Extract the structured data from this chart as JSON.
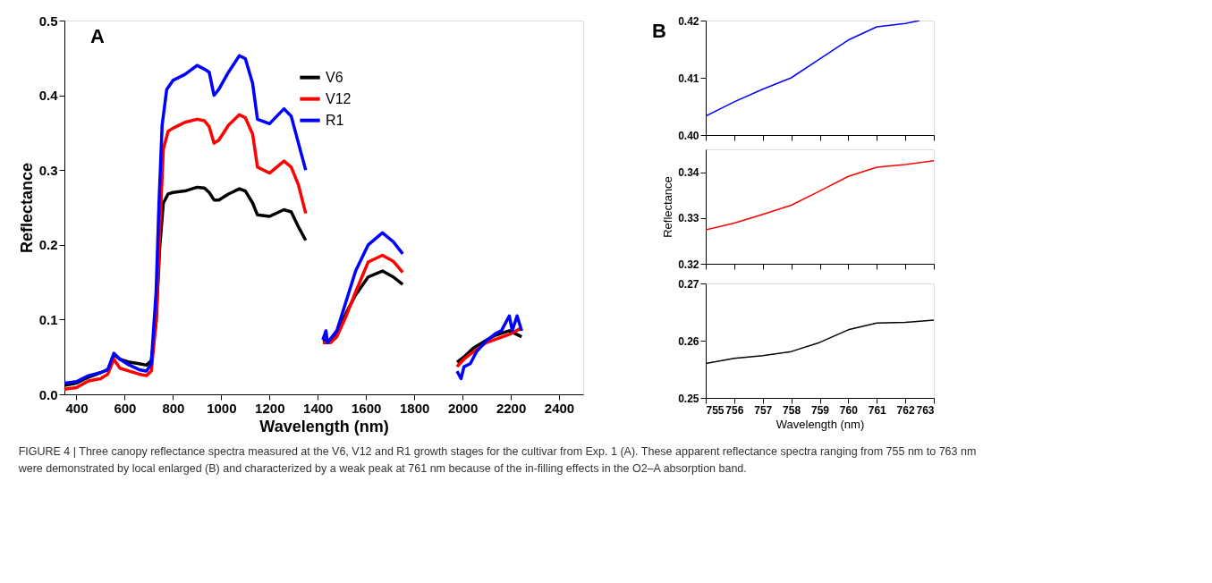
{
  "chart_data": [
    {
      "type": "line",
      "xlabel": "Wavelength (nm)",
      "ylabel": "Reflectance",
      "xlim": [
        350,
        2500
      ],
      "xticks": [
        400,
        600,
        800,
        1000,
        1200,
        1400,
        1600,
        1800,
        2000,
        2200,
        2400
      ],
      "ylim": [
        0,
        0.5
      ],
      "yticks": [
        {
          "value": 0,
          "label": "0.0"
        },
        0.1,
        0.2,
        0.3,
        0.4,
        0.5
      ],
      "grid": false,
      "legend": "top",
      "line_style": "solid",
      "marker": "none",
      "annotations": [
        "A",
        "FIGURE 4 | Three canopy reflectance spectra measured at the V6, V12 and R1 growth stages for the cultivar from Exp. 1 (A). These apparent reflectance spectra ranging from 755 nm to 763 nm were demonstrated by local enlarged (B) and characterized by a weak peak at 761 nm because of the in-filling effects in the O2–A absorption band."
      ],
      "series": [
        {
          "name": "V6",
          "color": "#000000",
          "x": [
            350,
            400,
            450,
            500,
            530,
            555,
            580,
            620,
            660,
            690,
            710,
            730,
            745,
            760,
            780,
            800,
            850,
            900,
            930,
            950,
            970,
            990,
            1030,
            1075,
            1100,
            1130,
            1150,
            1200,
            1260,
            1290,
            1320,
            1350,
            1390,
            1421,
            1453,
            1479,
            1518,
            1557,
            1609,
            1668,
            1713,
            1752,
            1870,
            1977,
            2006,
            2045,
            2097,
            2135,
            2194,
            2245
          ],
          "values": [
            0.012,
            0.015,
            0.023,
            0.029,
            0.033,
            0.053,
            0.047,
            0.043,
            0.041,
            0.039,
            0.045,
            0.097,
            0.196,
            0.256,
            0.268,
            0.27,
            0.272,
            0.277,
            0.276,
            0.27,
            0.26,
            0.26,
            0.268,
            0.275,
            0.272,
            0.256,
            0.24,
            0.238,
            0.247,
            0.244,
            0.224,
            0.206,
            null,
            0.073,
            0.071,
            0.081,
            0.109,
            0.133,
            0.157,
            0.165,
            0.157,
            0.147,
            null,
            0.043,
            0.05,
            0.062,
            0.072,
            0.079,
            0.085,
            0.077
          ]
        },
        {
          "name": "V12",
          "color": "#ff0000",
          "x": [
            350,
            400,
            450,
            500,
            530,
            555,
            580,
            620,
            660,
            690,
            710,
            730,
            745,
            760,
            780,
            800,
            850,
            900,
            930,
            950,
            970,
            990,
            1030,
            1075,
            1100,
            1130,
            1150,
            1200,
            1260,
            1290,
            1320,
            1350,
            1390,
            1421,
            1453,
            1479,
            1518,
            1557,
            1609,
            1668,
            1713,
            1752,
            1870,
            1977,
            2006,
            2045,
            2097,
            2148,
            2200,
            2245
          ],
          "values": [
            0.007,
            0.009,
            0.018,
            0.021,
            0.027,
            0.047,
            0.035,
            0.031,
            0.027,
            0.025,
            0.031,
            0.097,
            0.216,
            0.328,
            0.352,
            0.356,
            0.364,
            0.368,
            0.366,
            0.358,
            0.336,
            0.34,
            0.36,
            0.374,
            0.37,
            0.348,
            0.304,
            0.296,
            0.312,
            0.304,
            0.28,
            0.242,
            null,
            0.069,
            0.069,
            0.077,
            0.105,
            0.137,
            0.177,
            0.186,
            0.178,
            0.163,
            null,
            0.037,
            0.047,
            0.057,
            0.069,
            0.075,
            0.081,
            0.089
          ]
        },
        {
          "name": "R1",
          "color": "#0000ff",
          "x": [
            350,
            400,
            450,
            500,
            530,
            555,
            580,
            620,
            660,
            690,
            710,
            730,
            742,
            755,
            774,
            800,
            850,
            900,
            930,
            950,
            970,
            990,
            1030,
            1075,
            1100,
            1130,
            1150,
            1200,
            1260,
            1290,
            1320,
            1350,
            1390,
            1421,
            1434,
            1440,
            1479,
            1518,
            1557,
            1609,
            1668,
            1713,
            1752,
            1870,
            1977,
            1994,
            2006,
            2032,
            2058,
            2097,
            2135,
            2161,
            2194,
            2206,
            2226,
            2245
          ],
          "values": [
            0.015,
            0.017,
            0.025,
            0.029,
            0.033,
            0.055,
            0.047,
            0.039,
            0.033,
            0.031,
            0.041,
            0.137,
            0.256,
            0.36,
            0.408,
            0.42,
            0.428,
            0.44,
            0.435,
            0.431,
            0.4,
            0.408,
            0.431,
            0.453,
            0.449,
            0.416,
            0.368,
            0.362,
            0.382,
            0.372,
            0.336,
            0.3,
            null,
            0.073,
            0.085,
            0.069,
            0.085,
            0.125,
            0.165,
            0.2,
            0.216,
            0.204,
            0.188,
            null,
            0.031,
            0.021,
            0.037,
            0.041,
            0.057,
            0.071,
            0.081,
            0.085,
            0.105,
            0.085,
            0.105,
            0.085
          ]
        }
      ]
    },
    {
      "type": "line",
      "xlim": [
        755,
        763
      ],
      "xticks": [
        755,
        756,
        757,
        758,
        759,
        760,
        761,
        762,
        763
      ],
      "ylim": [
        0.4,
        0.42
      ],
      "yticks": [
        {
          "value": 0.4,
          "label": "0.40"
        },
        0.41,
        0.42
      ],
      "tick_labels": "y",
      "grid": false,
      "legend": "top left",
      "line_style": "solid",
      "marker": "none",
      "annotations": [
        "B"
      ],
      "series": [
        {
          "name": "R1",
          "color": "#0000ff",
          "x": [
            755,
            756,
            757,
            758,
            759,
            760,
            761,
            762,
            762.5
          ],
          "values": [
            0.4033,
            0.4058,
            0.408,
            0.41,
            0.4133,
            0.4166,
            0.4189,
            0.4195,
            0.42
          ]
        }
      ]
    },
    {
      "type": "line",
      "ylabel": "Reflectance",
      "xlim": [
        755,
        763
      ],
      "xticks": [
        755,
        756,
        757,
        758,
        759,
        760,
        761,
        762,
        763
      ],
      "ylim": [
        0.32,
        0.345
      ],
      "yticks": [
        0.32,
        0.33,
        0.34
      ],
      "tick_labels": "y",
      "grid": false,
      "legend": "top left",
      "line_style": "solid",
      "marker": "none",
      "series": [
        {
          "name": "V12",
          "color": "#ff0000",
          "x": [
            755,
            756,
            757,
            758,
            759,
            760,
            761,
            762,
            763
          ],
          "values": [
            0.3274,
            0.3289,
            0.3308,
            0.3328,
            0.3359,
            0.3391,
            0.3411,
            0.3417,
            0.3425
          ]
        }
      ]
    },
    {
      "type": "line",
      "xlabel": "Wavelength (nm)",
      "xlim": [
        755,
        763
      ],
      "xticks": [
        755,
        756,
        757,
        758,
        759,
        760,
        761,
        762,
        763
      ],
      "ylim": [
        0.25,
        0.27
      ],
      "yticks": [
        0.25,
        0.26,
        0.27
      ],
      "grid": false,
      "legend": "top left",
      "line_style": "solid",
      "marker": "none",
      "series": [
        {
          "name": "V6",
          "color": "#000000",
          "x": [
            755,
            756,
            757,
            758,
            759,
            760,
            761,
            762,
            763
          ],
          "values": [
            0.256,
            0.2569,
            0.2574,
            0.2581,
            0.2597,
            0.2619,
            0.2631,
            0.2632,
            0.2636
          ]
        }
      ]
    }
  ]
}
